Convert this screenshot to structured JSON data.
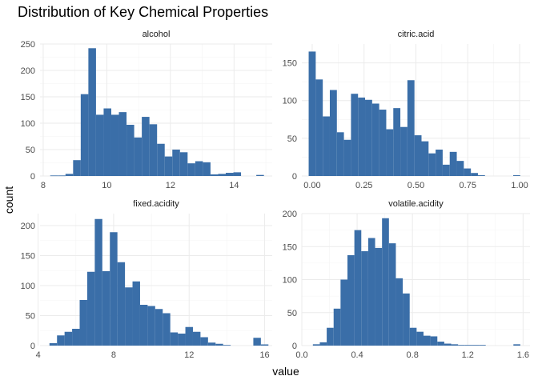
{
  "title": "Distribution of Key Chemical Properties",
  "xlabel": "value",
  "ylabel": "count",
  "bar_color": "#3A6EA8",
  "chart_data": {
    "type": "bar",
    "title": "Distribution of Key Chemical Properties",
    "xlabel": "value",
    "ylabel": "count",
    "grid": true,
    "facets": [
      {
        "name": "alcohol",
        "xlim": [
          7.9,
          15.2
        ],
        "ylim": [
          0,
          250
        ],
        "x_ticks": [
          8,
          10,
          12,
          14
        ],
        "x_tick_labels": [
          "8",
          "10",
          "12",
          "14"
        ],
        "y_ticks": [
          0,
          50,
          100,
          150,
          200,
          250
        ],
        "y_tick_labels": [
          "0",
          "50",
          "100",
          "150",
          "200",
          "250"
        ],
        "bins": [
          {
            "x0": 8.22,
            "x1": 8.46,
            "count": 1
          },
          {
            "x0": 8.46,
            "x1": 8.7,
            "count": 1
          },
          {
            "x0": 8.7,
            "x1": 8.94,
            "count": 4
          },
          {
            "x0": 8.94,
            "x1": 9.18,
            "count": 30
          },
          {
            "x0": 9.18,
            "x1": 9.42,
            "count": 155
          },
          {
            "x0": 9.42,
            "x1": 9.66,
            "count": 242
          },
          {
            "x0": 9.66,
            "x1": 9.9,
            "count": 116
          },
          {
            "x0": 9.9,
            "x1": 10.14,
            "count": 128
          },
          {
            "x0": 10.14,
            "x1": 10.38,
            "count": 116
          },
          {
            "x0": 10.38,
            "x1": 10.62,
            "count": 121
          },
          {
            "x0": 10.62,
            "x1": 10.86,
            "count": 97
          },
          {
            "x0": 10.86,
            "x1": 11.1,
            "count": 73
          },
          {
            "x0": 11.1,
            "x1": 11.34,
            "count": 112
          },
          {
            "x0": 11.34,
            "x1": 11.58,
            "count": 98
          },
          {
            "x0": 11.58,
            "x1": 11.82,
            "count": 61
          },
          {
            "x0": 11.82,
            "x1": 12.06,
            "count": 37
          },
          {
            "x0": 12.06,
            "x1": 12.3,
            "count": 50
          },
          {
            "x0": 12.3,
            "x1": 12.54,
            "count": 45
          },
          {
            "x0": 12.54,
            "x1": 12.78,
            "count": 24
          },
          {
            "x0": 12.78,
            "x1": 13.02,
            "count": 28
          },
          {
            "x0": 13.02,
            "x1": 13.26,
            "count": 26
          },
          {
            "x0": 13.26,
            "x1": 13.5,
            "count": 3
          },
          {
            "x0": 13.5,
            "x1": 13.74,
            "count": 4
          },
          {
            "x0": 13.74,
            "x1": 13.98,
            "count": 6
          },
          {
            "x0": 13.98,
            "x1": 14.22,
            "count": 7
          },
          {
            "x0": 14.22,
            "x1": 14.46,
            "count": 0
          },
          {
            "x0": 14.46,
            "x1": 14.7,
            "count": 0
          },
          {
            "x0": 14.7,
            "x1": 14.94,
            "count": 2
          }
        ]
      },
      {
        "name": "citric.acid",
        "xlim": [
          -0.05,
          1.05
        ],
        "ylim": [
          0,
          175
        ],
        "x_ticks": [
          0,
          0.25,
          0.5,
          0.75,
          1.0
        ],
        "x_tick_labels": [
          "0.00",
          "0.25",
          "0.50",
          "0.75",
          "1.00"
        ],
        "y_ticks": [
          0,
          50,
          100,
          150
        ],
        "y_tick_labels": [
          "0",
          "50",
          "100",
          "150"
        ],
        "bins": [
          {
            "x0": -0.017,
            "x1": 0.017,
            "count": 165
          },
          {
            "x0": 0.017,
            "x1": 0.051,
            "count": 128
          },
          {
            "x0": 0.051,
            "x1": 0.085,
            "count": 79
          },
          {
            "x0": 0.085,
            "x1": 0.119,
            "count": 114
          },
          {
            "x0": 0.119,
            "x1": 0.153,
            "count": 58
          },
          {
            "x0": 0.153,
            "x1": 0.187,
            "count": 48
          },
          {
            "x0": 0.187,
            "x1": 0.221,
            "count": 109
          },
          {
            "x0": 0.221,
            "x1": 0.255,
            "count": 104
          },
          {
            "x0": 0.255,
            "x1": 0.289,
            "count": 101
          },
          {
            "x0": 0.289,
            "x1": 0.323,
            "count": 96
          },
          {
            "x0": 0.323,
            "x1": 0.357,
            "count": 88
          },
          {
            "x0": 0.357,
            "x1": 0.391,
            "count": 62
          },
          {
            "x0": 0.391,
            "x1": 0.425,
            "count": 90
          },
          {
            "x0": 0.425,
            "x1": 0.459,
            "count": 65
          },
          {
            "x0": 0.459,
            "x1": 0.493,
            "count": 127
          },
          {
            "x0": 0.493,
            "x1": 0.527,
            "count": 54
          },
          {
            "x0": 0.527,
            "x1": 0.561,
            "count": 46
          },
          {
            "x0": 0.561,
            "x1": 0.595,
            "count": 30
          },
          {
            "x0": 0.595,
            "x1": 0.629,
            "count": 35
          },
          {
            "x0": 0.629,
            "x1": 0.663,
            "count": 15
          },
          {
            "x0": 0.663,
            "x1": 0.697,
            "count": 32
          },
          {
            "x0": 0.697,
            "x1": 0.731,
            "count": 20
          },
          {
            "x0": 0.731,
            "x1": 0.765,
            "count": 10
          },
          {
            "x0": 0.765,
            "x1": 0.799,
            "count": 4
          },
          {
            "x0": 0.799,
            "x1": 0.833,
            "count": 1
          },
          {
            "x0": 0.833,
            "x1": 0.867,
            "count": 0
          },
          {
            "x0": 0.867,
            "x1": 0.901,
            "count": 0
          },
          {
            "x0": 0.901,
            "x1": 0.935,
            "count": 0
          },
          {
            "x0": 0.935,
            "x1": 0.969,
            "count": 0
          },
          {
            "x0": 0.969,
            "x1": 1.003,
            "count": 1
          }
        ]
      },
      {
        "name": "fixed.acidity",
        "xlim": [
          4.1,
          16.4
        ],
        "ylim": [
          0,
          220
        ],
        "x_ticks": [
          4,
          8,
          12,
          16
        ],
        "x_tick_labels": [
          "4",
          "8",
          "12",
          "16"
        ],
        "y_ticks": [
          0,
          50,
          100,
          150,
          200
        ],
        "y_tick_labels": [
          "0",
          "50",
          "100",
          "150",
          "200"
        ],
        "bins": [
          {
            "x0": 4.6,
            "x1": 5.0,
            "count": 4
          },
          {
            "x0": 5.0,
            "x1": 5.4,
            "count": 17
          },
          {
            "x0": 5.4,
            "x1": 5.8,
            "count": 23
          },
          {
            "x0": 5.8,
            "x1": 6.2,
            "count": 28
          },
          {
            "x0": 6.2,
            "x1": 6.6,
            "count": 76
          },
          {
            "x0": 6.6,
            "x1": 7.0,
            "count": 123
          },
          {
            "x0": 7.0,
            "x1": 7.4,
            "count": 211
          },
          {
            "x0": 7.4,
            "x1": 7.8,
            "count": 124
          },
          {
            "x0": 7.8,
            "x1": 8.2,
            "count": 189
          },
          {
            "x0": 8.2,
            "x1": 8.6,
            "count": 139
          },
          {
            "x0": 8.6,
            "x1": 9.0,
            "count": 97
          },
          {
            "x0": 9.0,
            "x1": 9.4,
            "count": 107
          },
          {
            "x0": 9.4,
            "x1": 9.8,
            "count": 68
          },
          {
            "x0": 9.8,
            "x1": 10.2,
            "count": 66
          },
          {
            "x0": 10.2,
            "x1": 10.6,
            "count": 61
          },
          {
            "x0": 10.6,
            "x1": 11.0,
            "count": 54
          },
          {
            "x0": 11.0,
            "x1": 11.4,
            "count": 22
          },
          {
            "x0": 11.4,
            "x1": 11.8,
            "count": 20
          },
          {
            "x0": 11.8,
            "x1": 12.2,
            "count": 31
          },
          {
            "x0": 12.2,
            "x1": 12.6,
            "count": 23
          },
          {
            "x0": 12.6,
            "x1": 13.0,
            "count": 14
          },
          {
            "x0": 13.0,
            "x1": 13.4,
            "count": 5
          },
          {
            "x0": 13.4,
            "x1": 13.8,
            "count": 3
          },
          {
            "x0": 13.8,
            "x1": 14.2,
            "count": 1
          },
          {
            "x0": 14.2,
            "x1": 14.6,
            "count": 0
          },
          {
            "x0": 14.6,
            "x1": 15.0,
            "count": 0
          },
          {
            "x0": 15.0,
            "x1": 15.4,
            "count": 0
          },
          {
            "x0": 15.4,
            "x1": 15.8,
            "count": 13
          },
          {
            "x0": 15.8,
            "x1": 16.2,
            "count": 2
          }
        ]
      },
      {
        "name": "volatile.acidity",
        "xlim": [
          0.0,
          1.65
        ],
        "ylim": [
          0,
          200
        ],
        "x_ticks": [
          0.0,
          0.4,
          0.8,
          1.2,
          1.6
        ],
        "x_tick_labels": [
          "0.0",
          "0.4",
          "0.8",
          "1.2",
          "1.6"
        ],
        "y_ticks": [
          0,
          50,
          100,
          150,
          200
        ],
        "y_tick_labels": [
          "0",
          "50",
          "100",
          "150",
          "200"
        ],
        "bins": [
          {
            "x0": 0.08,
            "x1": 0.13,
            "count": 2
          },
          {
            "x0": 0.13,
            "x1": 0.18,
            "count": 5
          },
          {
            "x0": 0.18,
            "x1": 0.23,
            "count": 27
          },
          {
            "x0": 0.23,
            "x1": 0.28,
            "count": 56
          },
          {
            "x0": 0.28,
            "x1": 0.33,
            "count": 100
          },
          {
            "x0": 0.33,
            "x1": 0.38,
            "count": 137
          },
          {
            "x0": 0.38,
            "x1": 0.43,
            "count": 175
          },
          {
            "x0": 0.43,
            "x1": 0.48,
            "count": 143
          },
          {
            "x0": 0.48,
            "x1": 0.53,
            "count": 163
          },
          {
            "x0": 0.53,
            "x1": 0.58,
            "count": 148
          },
          {
            "x0": 0.58,
            "x1": 0.63,
            "count": 193
          },
          {
            "x0": 0.63,
            "x1": 0.68,
            "count": 155
          },
          {
            "x0": 0.68,
            "x1": 0.73,
            "count": 102
          },
          {
            "x0": 0.73,
            "x1": 0.78,
            "count": 79
          },
          {
            "x0": 0.78,
            "x1": 0.83,
            "count": 27
          },
          {
            "x0": 0.83,
            "x1": 0.88,
            "count": 21
          },
          {
            "x0": 0.88,
            "x1": 0.93,
            "count": 15
          },
          {
            "x0": 0.93,
            "x1": 0.98,
            "count": 14
          },
          {
            "x0": 0.98,
            "x1": 1.03,
            "count": 6
          },
          {
            "x0": 1.03,
            "x1": 1.08,
            "count": 3
          },
          {
            "x0": 1.08,
            "x1": 1.13,
            "count": 2
          },
          {
            "x0": 1.13,
            "x1": 1.18,
            "count": 1
          },
          {
            "x0": 1.18,
            "x1": 1.23,
            "count": 1
          },
          {
            "x0": 1.23,
            "x1": 1.28,
            "count": 1
          },
          {
            "x0": 1.28,
            "x1": 1.33,
            "count": 1
          },
          {
            "x0": 1.33,
            "x1": 1.38,
            "count": 0
          },
          {
            "x0": 1.38,
            "x1": 1.43,
            "count": 0
          },
          {
            "x0": 1.43,
            "x1": 1.48,
            "count": 0
          },
          {
            "x0": 1.48,
            "x1": 1.53,
            "count": 0
          },
          {
            "x0": 1.53,
            "x1": 1.58,
            "count": 2
          }
        ]
      }
    ]
  }
}
